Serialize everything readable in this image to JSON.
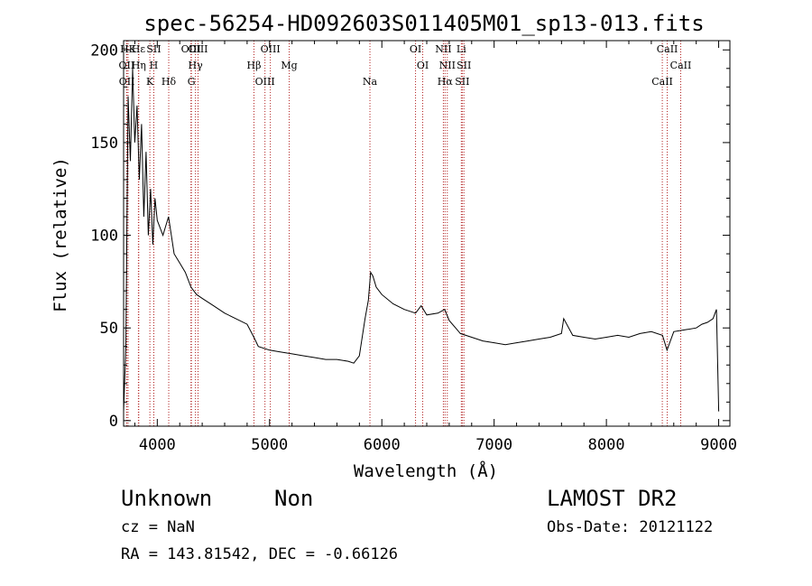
{
  "chart_data": {
    "type": "line",
    "title": "spec-56254-HD092603S011405M01_sp13-013.fits",
    "xlabel": "Wavelength (Å)",
    "ylabel": "Flux (relative)",
    "xlim": [
      3700,
      9100
    ],
    "ylim": [
      -3,
      205
    ],
    "xticks": [
      4000,
      5000,
      6000,
      7000,
      8000,
      9000
    ],
    "yticks": [
      0,
      50,
      100,
      150,
      200
    ],
    "grid": false,
    "series": [
      {
        "x": [
          3700,
          3720,
          3740,
          3760,
          3780,
          3800,
          3820,
          3840,
          3860,
          3880,
          3900,
          3920,
          3940,
          3960,
          3980,
          4000,
          4050,
          4100,
          4150,
          4200,
          4250,
          4300,
          4350,
          4400,
          4500,
          4600,
          4700,
          4800,
          4860,
          4900,
          5000,
          5100,
          5200,
          5300,
          5400,
          5500,
          5600,
          5700,
          5750,
          5800,
          5850,
          5880,
          5900,
          5920,
          5950,
          6000,
          6100,
          6200,
          6300,
          6350,
          6400,
          6500,
          6560,
          6600,
          6700,
          6800,
          6900,
          7000,
          7100,
          7200,
          7300,
          7400,
          7500,
          7600,
          7620,
          7700,
          7800,
          7900,
          8000,
          8100,
          8200,
          8300,
          8400,
          8500,
          8540,
          8600,
          8700,
          8800,
          8850,
          8900,
          8950,
          8980,
          9000
        ],
        "y": [
          5,
          40,
          175,
          140,
          190,
          150,
          170,
          130,
          160,
          110,
          145,
          100,
          125,
          95,
          120,
          108,
          100,
          110,
          90,
          85,
          80,
          72,
          68,
          66,
          62,
          58,
          55,
          52,
          45,
          40,
          38,
          37,
          36,
          35,
          34,
          33,
          33,
          32,
          31,
          35,
          55,
          65,
          80,
          78,
          72,
          68,
          63,
          60,
          58,
          62,
          57,
          58,
          60,
          54,
          47,
          45,
          43,
          42,
          41,
          42,
          43,
          44,
          45,
          47,
          55,
          46,
          45,
          44,
          45,
          46,
          45,
          47,
          48,
          46,
          38,
          48,
          49,
          50,
          52,
          53,
          55,
          60,
          5
        ]
      }
    ],
    "lines": [
      {
        "label": "HK",
        "x": 3740
      },
      {
        "label": "OII",
        "x": 3727
      },
      {
        "label": "OII",
        "x": 3729
      },
      {
        "label": "Hε",
        "x": 3832
      },
      {
        "label": "Hη",
        "x": 3835
      },
      {
        "label": "K",
        "x": 3934
      },
      {
        "label": "SII",
        "x": 3969
      },
      {
        "label": "H",
        "x": 3969
      },
      {
        "label": "Hδ",
        "x": 4102
      },
      {
        "label": "OIII",
        "x": 4300
      },
      {
        "label": "Hγ",
        "x": 4340
      },
      {
        "label": "G",
        "x": 4304
      },
      {
        "label": "OIII",
        "x": 4363
      },
      {
        "label": "Hβ",
        "x": 4861
      },
      {
        "label": "OIII",
        "x": 4959
      },
      {
        "label": "OIII",
        "x": 5007
      },
      {
        "label": "Mg",
        "x": 5175
      },
      {
        "label": "Na",
        "x": 5894
      },
      {
        "label": "OI",
        "x": 6300
      },
      {
        "label": "OI",
        "x": 6364
      },
      {
        "label": "Hα",
        "x": 6563
      },
      {
        "label": "NII",
        "x": 6548
      },
      {
        "label": "NII",
        "x": 6583
      },
      {
        "label": "SII",
        "x": 6716
      },
      {
        "label": "Li",
        "x": 6708
      },
      {
        "label": "SII",
        "x": 6731
      },
      {
        "label": "CaII",
        "x": 8498
      },
      {
        "label": "CaII",
        "x": 8542
      },
      {
        "label": "CaII",
        "x": 8662
      }
    ]
  },
  "info": {
    "object": "Unknown",
    "subclass": "Non",
    "survey": "LAMOST DR2",
    "cz": "cz = NaN",
    "obs_date": "Obs-Date: 20121122",
    "coords": "RA = 143.81542, DEC =  -0.66126"
  },
  "colors": {
    "line": "#000000",
    "marker": "#b22222",
    "background": "#ffffff"
  }
}
